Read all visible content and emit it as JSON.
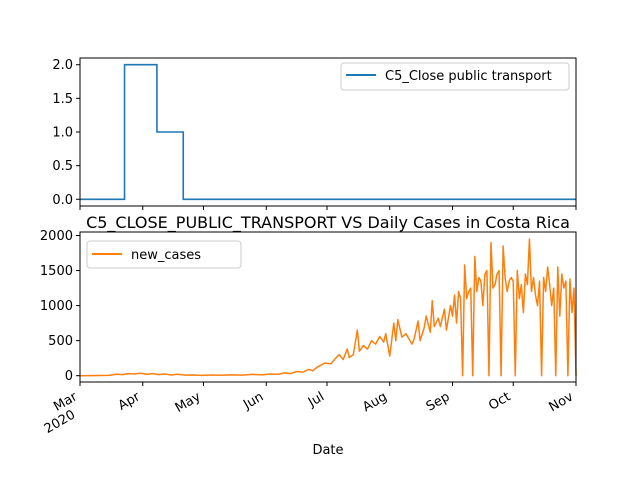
{
  "chart_data": [
    {
      "type": "line",
      "title": "",
      "xlabel": "",
      "ylabel": "",
      "x_range": [
        "2020-03-01",
        "2020-11-01"
      ],
      "ylim": [
        -0.1,
        2.1
      ],
      "yticks": [
        "0.0",
        "0.5",
        "1.0",
        "1.5",
        "2.0"
      ],
      "grid": false,
      "legend_position": "upper right",
      "series": [
        {
          "name": "C5_Close public transport",
          "color": "#1f77b4",
          "step": true,
          "points": [
            [
              "2020-03-01",
              0
            ],
            [
              "2020-03-23",
              2
            ],
            [
              "2020-04-08",
              1
            ],
            [
              "2020-04-21",
              0
            ],
            [
              "2020-11-01",
              0
            ]
          ]
        }
      ]
    },
    {
      "type": "line",
      "title": "C5_CLOSE_PUBLIC_TRANSPORT VS Daily Cases in Costa Rica",
      "xlabel": "Date",
      "ylabel": "",
      "x_range": [
        "2020-03-01",
        "2020-11-01"
      ],
      "ylim": [
        -90,
        2050
      ],
      "yticks": [
        "0",
        "500",
        "1000",
        "1500",
        "2000"
      ],
      "xticks": [
        {
          "date": "2020-03-01",
          "label": "Mar",
          "sub": "2020"
        },
        {
          "date": "2020-04-01",
          "label": "Apr"
        },
        {
          "date": "2020-05-01",
          "label": "May"
        },
        {
          "date": "2020-06-01",
          "label": "Jun"
        },
        {
          "date": "2020-07-01",
          "label": "Jul"
        },
        {
          "date": "2020-08-01",
          "label": "Aug"
        },
        {
          "date": "2020-09-01",
          "label": "Sep"
        },
        {
          "date": "2020-10-01",
          "label": "Oct"
        },
        {
          "date": "2020-11-01",
          "label": "Nov"
        }
      ],
      "grid": false,
      "legend_position": "upper left",
      "series": [
        {
          "name": "new_cases",
          "color": "#ff7f0e",
          "points": [
            [
              "2020-03-01",
              0
            ],
            [
              "2020-03-10",
              2
            ],
            [
              "2020-03-15",
              5
            ],
            [
              "2020-03-19",
              20
            ],
            [
              "2020-03-22",
              15
            ],
            [
              "2020-03-25",
              30
            ],
            [
              "2020-03-28",
              25
            ],
            [
              "2020-03-31",
              35
            ],
            [
              "2020-04-03",
              20
            ],
            [
              "2020-04-06",
              30
            ],
            [
              "2020-04-09",
              15
            ],
            [
              "2020-04-12",
              25
            ],
            [
              "2020-04-15",
              10
            ],
            [
              "2020-04-18",
              20
            ],
            [
              "2020-04-22",
              8
            ],
            [
              "2020-04-26",
              10
            ],
            [
              "2020-04-30",
              5
            ],
            [
              "2020-05-05",
              10
            ],
            [
              "2020-05-10",
              6
            ],
            [
              "2020-05-15",
              12
            ],
            [
              "2020-05-20",
              8
            ],
            [
              "2020-05-25",
              18
            ],
            [
              "2020-05-30",
              12
            ],
            [
              "2020-06-03",
              25
            ],
            [
              "2020-06-07",
              20
            ],
            [
              "2020-06-10",
              40
            ],
            [
              "2020-06-13",
              30
            ],
            [
              "2020-06-16",
              60
            ],
            [
              "2020-06-19",
              50
            ],
            [
              "2020-06-22",
              90
            ],
            [
              "2020-06-24",
              70
            ],
            [
              "2020-06-26",
              120
            ],
            [
              "2020-06-28",
              150
            ],
            [
              "2020-06-30",
              180
            ],
            [
              "2020-07-03",
              170
            ],
            [
              "2020-07-05",
              240
            ],
            [
              "2020-07-07",
              300
            ],
            [
              "2020-07-09",
              230
            ],
            [
              "2020-07-11",
              380
            ],
            [
              "2020-07-12",
              260
            ],
            [
              "2020-07-14",
              300
            ],
            [
              "2020-07-16",
              650
            ],
            [
              "2020-07-17",
              350
            ],
            [
              "2020-07-19",
              430
            ],
            [
              "2020-07-21",
              380
            ],
            [
              "2020-07-23",
              500
            ],
            [
              "2020-07-25",
              450
            ],
            [
              "2020-07-27",
              560
            ],
            [
              "2020-07-29",
              480
            ],
            [
              "2020-07-30",
              600
            ],
            [
              "2020-08-01",
              280
            ],
            [
              "2020-08-03",
              750
            ],
            [
              "2020-08-04",
              500
            ],
            [
              "2020-08-05",
              800
            ],
            [
              "2020-08-07",
              550
            ],
            [
              "2020-08-09",
              600
            ],
            [
              "2020-08-11",
              500
            ],
            [
              "2020-08-12",
              450
            ],
            [
              "2020-08-13",
              520
            ],
            [
              "2020-08-15",
              780
            ],
            [
              "2020-08-16",
              500
            ],
            [
              "2020-08-18",
              680
            ],
            [
              "2020-08-19",
              850
            ],
            [
              "2020-08-21",
              620
            ],
            [
              "2020-08-22",
              1070
            ],
            [
              "2020-08-23",
              700
            ],
            [
              "2020-08-25",
              820
            ],
            [
              "2020-08-26",
              700
            ],
            [
              "2020-08-28",
              950
            ],
            [
              "2020-08-29",
              650
            ],
            [
              "2020-08-31",
              1000
            ],
            [
              "2020-09-01",
              850
            ],
            [
              "2020-09-02",
              1150
            ],
            [
              "2020-09-03",
              750
            ],
            [
              "2020-09-04",
              1200
            ],
            [
              "2020-09-05",
              1100
            ],
            [
              "2020-09-06",
              0
            ],
            [
              "2020-09-07",
              1580
            ],
            [
              "2020-09-08",
              1100
            ],
            [
              "2020-09-09",
              1200
            ],
            [
              "2020-09-10",
              1250
            ],
            [
              "2020-09-11",
              0
            ],
            [
              "2020-09-12",
              1700
            ],
            [
              "2020-09-13",
              1200
            ],
            [
              "2020-09-14",
              1400
            ],
            [
              "2020-09-15",
              1350
            ],
            [
              "2020-09-16",
              1000
            ],
            [
              "2020-09-17",
              1450
            ],
            [
              "2020-09-18",
              1500
            ],
            [
              "2020-09-19",
              0
            ],
            [
              "2020-09-20",
              1900
            ],
            [
              "2020-09-21",
              1250
            ],
            [
              "2020-09-22",
              1300
            ],
            [
              "2020-09-23",
              1450
            ],
            [
              "2020-09-24",
              1500
            ],
            [
              "2020-09-25",
              0
            ],
            [
              "2020-09-26",
              1850
            ],
            [
              "2020-09-27",
              1400
            ],
            [
              "2020-09-28",
              1200
            ],
            [
              "2020-09-29",
              1350
            ],
            [
              "2020-09-30",
              1400
            ],
            [
              "2020-10-01",
              1350
            ],
            [
              "2020-10-02",
              0
            ],
            [
              "2020-10-03",
              1500
            ],
            [
              "2020-10-04",
              1100
            ],
            [
              "2020-10-05",
              1300
            ],
            [
              "2020-10-06",
              900
            ],
            [
              "2020-10-07",
              1450
            ],
            [
              "2020-10-08",
              1300
            ],
            [
              "2020-10-09",
              1950
            ],
            [
              "2020-10-10",
              1200
            ],
            [
              "2020-10-11",
              1400
            ],
            [
              "2020-10-12",
              1150
            ],
            [
              "2020-10-13",
              1000
            ],
            [
              "2020-10-14",
              1350
            ],
            [
              "2020-10-15",
              0
            ],
            [
              "2020-10-16",
              1400
            ],
            [
              "2020-10-17",
              1200
            ],
            [
              "2020-10-18",
              1550
            ],
            [
              "2020-10-19",
              1300
            ],
            [
              "2020-10-20",
              1000
            ],
            [
              "2020-10-21",
              1250
            ],
            [
              "2020-10-22",
              0
            ],
            [
              "2020-10-23",
              1550
            ],
            [
              "2020-10-24",
              850
            ],
            [
              "2020-10-25",
              1450
            ],
            [
              "2020-10-26",
              1250
            ],
            [
              "2020-10-27",
              1350
            ],
            [
              "2020-10-28",
              0
            ],
            [
              "2020-10-29",
              1380
            ],
            [
              "2020-10-30",
              900
            ],
            [
              "2020-10-31",
              1250
            ],
            [
              "2020-11-01",
              0
            ]
          ]
        }
      ]
    }
  ]
}
